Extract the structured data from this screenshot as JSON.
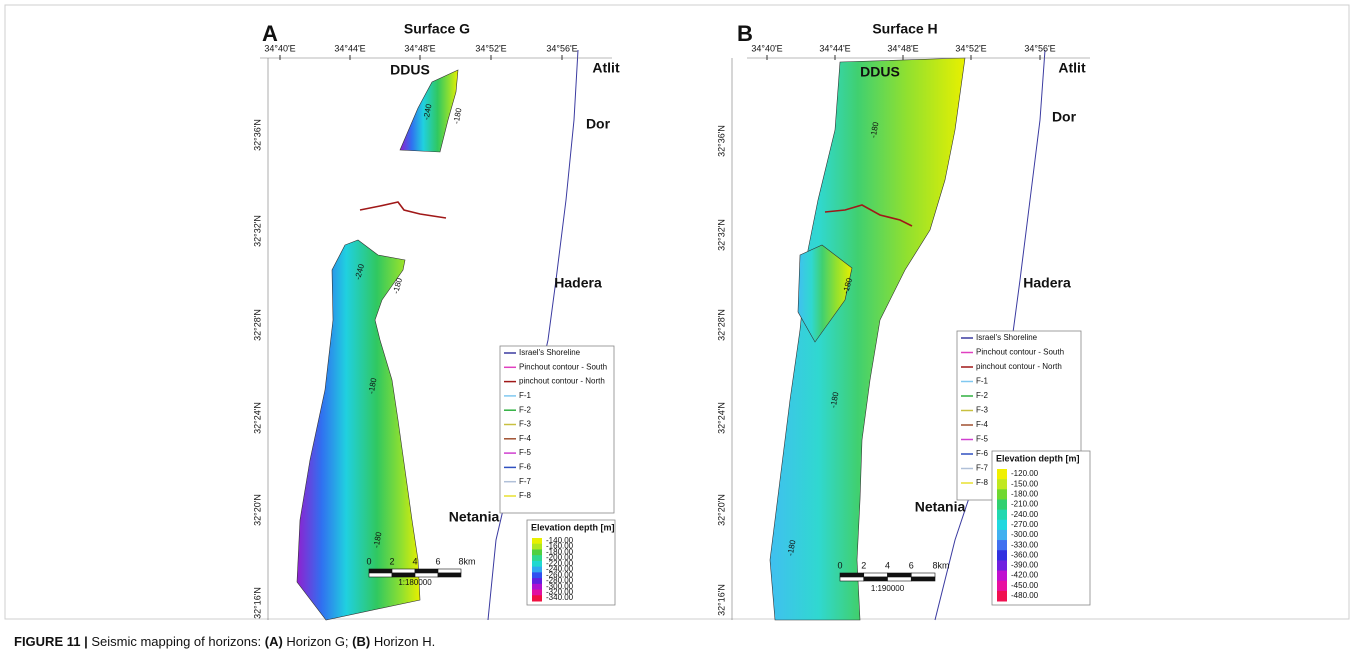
{
  "panels": [
    {
      "label": "A",
      "title": "Surface G",
      "lon_ticks": [
        "34°40'E",
        "34°44'E",
        "34°48'E",
        "34°52'E",
        "34°56'E"
      ],
      "lat_ticks": [
        "32°36'N",
        "32°32'N",
        "32°28'N",
        "32°24'N",
        "32°20'N",
        "32°16'N"
      ],
      "places": [
        "DDUS",
        "Atlit",
        "Dor",
        "Hadera",
        "Netania"
      ],
      "contour_labels": [
        "-180",
        "-240",
        "-240",
        "-180",
        "-180",
        "-180"
      ],
      "legend": [
        {
          "name": "Israel's Shoreline",
          "color": "#3a3aa0"
        },
        {
          "name": "Pinchout contour - South",
          "color": "#e040c0"
        },
        {
          "name": "pinchout contour - North",
          "color": "#a01818"
        },
        {
          "name": "F-1",
          "color": "#80c8f0"
        },
        {
          "name": "F-2",
          "color": "#30b040"
        },
        {
          "name": "F-3",
          "color": "#c8c040"
        },
        {
          "name": "F-4",
          "color": "#a05030"
        },
        {
          "name": "F-5",
          "color": "#d040d0"
        },
        {
          "name": "F-6",
          "color": "#3050c0"
        },
        {
          "name": "F-7",
          "color": "#b0c0d8"
        },
        {
          "name": "F-8",
          "color": "#e8e030"
        }
      ],
      "colorbar": {
        "title": "Elevation depth [m]",
        "labels": [
          "-140.00",
          "-160.00",
          "-180.00",
          "-200.00",
          "-220.00",
          "-240.00",
          "-260.00",
          "-280.00",
          "-300.00",
          "-320.00",
          "-340.00"
        ],
        "colors": [
          "#e8f000",
          "#b0e820",
          "#50d040",
          "#30d890",
          "#20d8d0",
          "#30a8f0",
          "#3050f0",
          "#6020e0",
          "#b010d0",
          "#e010a0",
          "#f01040"
        ]
      },
      "scale": {
        "ticks": [
          "0",
          "2",
          "4",
          "6",
          "8km"
        ],
        "ratio": "1:180000"
      }
    },
    {
      "label": "B",
      "title": "Surface H",
      "lon_ticks": [
        "34°40'E",
        "34°44'E",
        "34°48'E",
        "34°52'E",
        "34°56'E"
      ],
      "lat_ticks": [
        "32°36'N",
        "32°32'N",
        "32°28'N",
        "32°24'N",
        "32°20'N",
        "32°16'N"
      ],
      "places": [
        "DDUS",
        "Atlit",
        "Dor",
        "Hadera",
        "Netania"
      ],
      "contour_labels": [
        "-180",
        "-180",
        "-180",
        "-180"
      ],
      "legend": [
        {
          "name": "Israel's Shoreline",
          "color": "#3a3aa0"
        },
        {
          "name": "Pinchout contour - South",
          "color": "#e040c0"
        },
        {
          "name": "pinchout contour - North",
          "color": "#a01818"
        },
        {
          "name": "F-1",
          "color": "#80c8f0"
        },
        {
          "name": "F-2",
          "color": "#30b040"
        },
        {
          "name": "F-3",
          "color": "#c8c040"
        },
        {
          "name": "F-4",
          "color": "#a05030"
        },
        {
          "name": "F-5",
          "color": "#d040d0"
        },
        {
          "name": "F-6",
          "color": "#3050c0"
        },
        {
          "name": "F-7",
          "color": "#b0c0d8"
        },
        {
          "name": "F-8",
          "color": "#e8e030"
        }
      ],
      "colorbar": {
        "title": "Elevation depth [m]",
        "labels": [
          "-120.00",
          "-150.00",
          "-180.00",
          "-210.00",
          "-240.00",
          "-270.00",
          "-300.00",
          "-330.00",
          "-360.00",
          "-390.00",
          "-420.00",
          "-450.00",
          "-480.00"
        ],
        "colors": [
          "#f0f000",
          "#c0e820",
          "#70d830",
          "#30d070",
          "#20d8b0",
          "#20d8e0",
          "#40b0f0",
          "#4070f0",
          "#3030e0",
          "#7020e0",
          "#c010d0",
          "#e810a0",
          "#f01050"
        ]
      },
      "scale": {
        "ticks": [
          "0",
          "2",
          "4",
          "6",
          "8km"
        ],
        "ratio": "1:190000"
      }
    }
  ],
  "caption": [
    {
      "text": "FIGURE 11 |",
      "bold": true
    },
    {
      "text": " Seismic mapping of horizons: ",
      "bold": false
    },
    {
      "text": "(A)",
      "bold": true
    },
    {
      "text": " Horizon G; ",
      "bold": false
    },
    {
      "text": "(B)",
      "bold": true
    },
    {
      "text": " Horizon H.",
      "bold": false
    }
  ]
}
